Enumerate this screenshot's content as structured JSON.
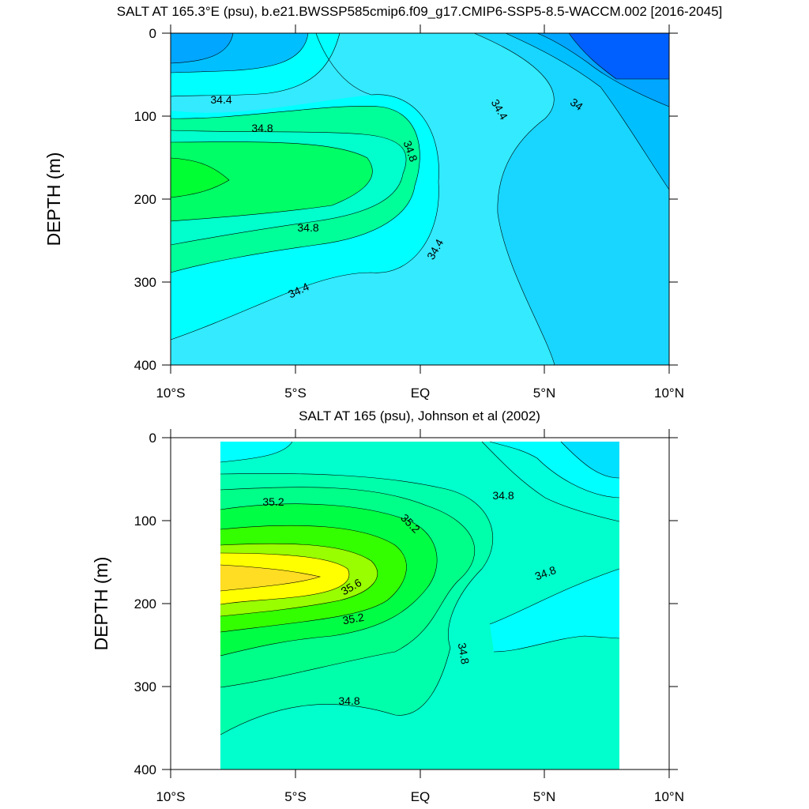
{
  "chart_data": [
    {
      "type": "contour",
      "title": "SALT AT 165.3°E (psu), b.e21.BWSSP585cmip6.f09_g17.CMIP6-SSP5-8.5-WACCM.002 [2016-2045]",
      "xlabel": "",
      "ylabel": "DEPTH (m)",
      "x_range": [
        -10,
        10
      ],
      "y_range": [
        0,
        400
      ],
      "y_inverted": true,
      "x_ticks": [
        -10,
        -5,
        0,
        5,
        10
      ],
      "x_tick_labels": [
        "10°S",
        "5°S",
        "EQ",
        "5°N",
        "10°N"
      ],
      "y_ticks": [
        0,
        100,
        200,
        300,
        400
      ],
      "y_tick_labels": [
        "0",
        "100",
        "200",
        "300",
        "400"
      ],
      "contour_labels": [
        "34.4",
        "34.8",
        "34.8",
        "34.8",
        "34.4",
        "34.4",
        "34.4",
        "34"
      ],
      "levels": [
        33.8,
        34.0,
        34.2,
        34.4,
        34.6,
        34.8,
        35.0,
        35.2
      ]
    },
    {
      "type": "contour",
      "title": "SALT AT 165 (psu), Johnson et al (2002)",
      "xlabel": "",
      "ylabel": "DEPTH (m)",
      "x_range": [
        -10,
        10
      ],
      "y_range": [
        0,
        400
      ],
      "y_inverted": true,
      "x_ticks": [
        -10,
        -5,
        0,
        5,
        10
      ],
      "x_tick_labels": [
        "10°S",
        "5°S",
        "EQ",
        "5°N",
        "10°N"
      ],
      "y_ticks": [
        0,
        100,
        200,
        300,
        400
      ],
      "y_tick_labels": [
        "0",
        "100",
        "200",
        "300",
        "400"
      ],
      "contour_labels": [
        "35.2",
        "35.2",
        "34.8",
        "35.6",
        "34.8",
        "35.2",
        "34.8",
        "34.8"
      ],
      "levels": [
        34.4,
        34.6,
        34.8,
        35.0,
        35.2,
        35.4,
        35.6
      ]
    }
  ]
}
